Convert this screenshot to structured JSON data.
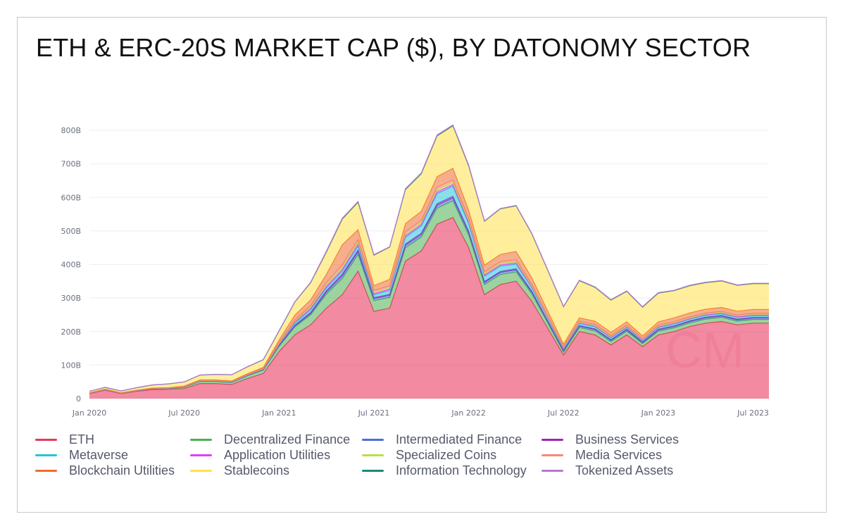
{
  "title": "ETH & ERC-20S MARKET CAP ($), BY DATONOMY SECTOR",
  "watermark": "CM",
  "chart_data": {
    "type": "area",
    "stacked": true,
    "title": "ETH & ERC-20S MARKET CAP ($), BY DATONOMY SECTOR",
    "xlabel": "",
    "ylabel": "",
    "ylim": [
      0,
      800000000000
    ],
    "yticks": [
      0,
      100,
      200,
      300,
      400,
      500,
      600,
      700,
      800
    ],
    "ytick_labels": [
      "0",
      "100B",
      "200B",
      "300B",
      "400B",
      "500B",
      "600B",
      "700B",
      "800B"
    ],
    "x_tick_labels": [
      "Jan 2020",
      "Jul 2020",
      "Jan 2021",
      "Jul 2021",
      "Jan 2022",
      "Jul 2022",
      "Jan 2023",
      "Jul 2023"
    ],
    "x_tick_months": [
      0,
      6,
      12,
      18,
      24,
      30,
      36,
      42
    ],
    "x": [
      0,
      1,
      2,
      3,
      4,
      5,
      6,
      7,
      8,
      9,
      10,
      11,
      12,
      13,
      14,
      15,
      16,
      17,
      18,
      19,
      20,
      21,
      22,
      23,
      24,
      25,
      26,
      27,
      28,
      29,
      30,
      31,
      32,
      33,
      34,
      35,
      36,
      37,
      38,
      39,
      40,
      41,
      42,
      43
    ],
    "x_unit": "months since Jan 2020",
    "series": [
      {
        "name": "ETH",
        "color": "#e8365d",
        "values": [
          15,
          25,
          15,
          22,
          27,
          28,
          30,
          45,
          45,
          42,
          60,
          75,
          140,
          190,
          220,
          270,
          310,
          380,
          260,
          270,
          410,
          440,
          520,
          540,
          450,
          310,
          340,
          350,
          290,
          210,
          130,
          200,
          190,
          160,
          190,
          155,
          190,
          200,
          215,
          225,
          230,
          220,
          225,
          225
        ]
      },
      {
        "name": "Decentralized Finance",
        "color": "#4caf50",
        "values": [
          1,
          1,
          1,
          1,
          2,
          2,
          4,
          6,
          6,
          6,
          8,
          10,
          16,
          24,
          30,
          42,
          48,
          50,
          32,
          32,
          40,
          42,
          48,
          50,
          38,
          30,
          30,
          28,
          22,
          16,
          9,
          12,
          12,
          10,
          11,
          9,
          11,
          11,
          11,
          12,
          12,
          11,
          11,
          11
        ]
      },
      {
        "name": "Intermediated Finance",
        "color": "#4a6fd6",
        "values": [
          0.3,
          0.4,
          0.3,
          0.4,
          0.5,
          0.5,
          0.6,
          0.8,
          0.8,
          0.8,
          1,
          1,
          2,
          3,
          4,
          6,
          8,
          8,
          6,
          6,
          7,
          7,
          8,
          8,
          7,
          6,
          6,
          6,
          5,
          4,
          3,
          4,
          4,
          4,
          4,
          3,
          4,
          4,
          4,
          4,
          4,
          4,
          4,
          4
        ]
      },
      {
        "name": "Business Services",
        "color": "#9c27b0",
        "values": [
          0.2,
          0.3,
          0.2,
          0.3,
          0.3,
          0.3,
          0.4,
          0.5,
          0.5,
          0.5,
          0.6,
          0.7,
          1,
          2,
          3,
          4,
          5,
          5,
          3,
          3,
          4,
          4,
          5,
          5,
          4,
          3,
          3,
          3,
          3,
          2,
          2,
          2,
          2,
          2,
          2,
          2,
          2,
          2,
          2,
          2,
          2,
          2,
          2,
          2
        ]
      },
      {
        "name": "Metaverse",
        "color": "#26c6da",
        "values": [
          0.1,
          0.2,
          0.1,
          0.2,
          0.2,
          0.2,
          0.3,
          0.4,
          0.4,
          0.4,
          0.6,
          0.8,
          2,
          6,
          8,
          8,
          9,
          12,
          8,
          12,
          20,
          22,
          30,
          30,
          22,
          16,
          16,
          14,
          10,
          8,
          5,
          6,
          6,
          5,
          5,
          4,
          5,
          5,
          5,
          5,
          5,
          5,
          5,
          5
        ]
      },
      {
        "name": "Application Utilities",
        "color": "#e040fb",
        "values": [
          0.2,
          0.3,
          0.2,
          0.3,
          0.3,
          0.3,
          0.4,
          0.6,
          0.6,
          0.6,
          0.8,
          1,
          2,
          3,
          4,
          5,
          6,
          6,
          4,
          4,
          5,
          5,
          6,
          6,
          5,
          4,
          4,
          4,
          3,
          2,
          2,
          2,
          2,
          2,
          2,
          2,
          2,
          2,
          2,
          2,
          2,
          2,
          2,
          2
        ]
      },
      {
        "name": "Specialized Coins",
        "color": "#b7e04a",
        "values": [
          0.2,
          0.3,
          0.2,
          0.3,
          0.3,
          0.3,
          0.4,
          0.6,
          0.6,
          0.6,
          0.8,
          1,
          2,
          3,
          4,
          5,
          6,
          6,
          4,
          4,
          5,
          5,
          6,
          6,
          5,
          4,
          4,
          4,
          3,
          2,
          2,
          2,
          2,
          2,
          2,
          2,
          2,
          2,
          2,
          2,
          2,
          2,
          2,
          2
        ]
      },
      {
        "name": "Media Services",
        "color": "#f48a7a",
        "values": [
          0.2,
          0.3,
          0.2,
          0.3,
          0.3,
          0.3,
          0.4,
          0.6,
          0.6,
          0.6,
          0.8,
          1,
          2,
          3,
          4,
          6,
          7,
          7,
          5,
          5,
          6,
          6,
          7,
          7,
          6,
          5,
          5,
          5,
          4,
          3,
          2,
          3,
          3,
          3,
          3,
          2,
          3,
          3,
          3,
          3,
          3,
          3,
          3,
          3
        ]
      },
      {
        "name": "Blockchain Utilities",
        "color": "#ef6c2e",
        "values": [
          0.5,
          0.7,
          0.5,
          0.7,
          0.8,
          0.8,
          1,
          1.5,
          1.5,
          1.5,
          2,
          3,
          8,
          15,
          18,
          25,
          60,
          30,
          15,
          20,
          25,
          28,
          32,
          35,
          25,
          20,
          22,
          25,
          20,
          15,
          8,
          10,
          10,
          10,
          10,
          8,
          10,
          12,
          12,
          12,
          12,
          12,
          12,
          12
        ]
      },
      {
        "name": "Stablecoins",
        "color": "#ffe14d",
        "values": [
          4,
          5,
          5,
          7,
          9,
          11,
          12,
          14,
          16,
          18,
          20,
          22,
          26,
          38,
          50,
          65,
          75,
          80,
          90,
          95,
          100,
          110,
          120,
          125,
          130,
          130,
          135,
          135,
          130,
          120,
          110,
          110,
          100,
          95,
          90,
          85,
          85,
          80,
          80,
          78,
          78,
          76,
          76,
          76
        ]
      },
      {
        "name": "Information Technology",
        "color": "#1a8a7a",
        "values": [
          0.1,
          0.1,
          0.1,
          0.1,
          0.1,
          0.1,
          0.2,
          0.2,
          0.2,
          0.2,
          0.3,
          0.4,
          0.8,
          1,
          1,
          2,
          2,
          2,
          1,
          1,
          2,
          2,
          2,
          2,
          2,
          1,
          1,
          1,
          1,
          1,
          1,
          1,
          1,
          1,
          1,
          1,
          1,
          1,
          1,
          1,
          1,
          1,
          1,
          1
        ]
      },
      {
        "name": "Tokenized Assets",
        "color": "#b678d6",
        "values": [
          0.1,
          0.1,
          0.1,
          0.1,
          0.1,
          0.1,
          0.2,
          0.2,
          0.2,
          0.2,
          0.3,
          0.4,
          0.8,
          1,
          1,
          2,
          2,
          2,
          1,
          1,
          2,
          2,
          2,
          2,
          2,
          1,
          1,
          1,
          1,
          1,
          1,
          1,
          1,
          1,
          1,
          1,
          1,
          1,
          1,
          1,
          1,
          1,
          1,
          1
        ]
      }
    ],
    "y_unit": "billions USD",
    "legend": "bottom",
    "grid": true
  },
  "legend": {
    "columns": [
      [
        "ETH",
        "Metaverse",
        "Blockchain Utilities"
      ],
      [
        "Decentralized Finance",
        "Application Utilities",
        "Stablecoins"
      ],
      [
        "Intermediated Finance",
        "Specialized Coins",
        "Information Technology"
      ],
      [
        "Business Services",
        "Media Services",
        "Tokenized Assets"
      ]
    ],
    "colors": [
      [
        "#e8365d",
        "#26c6da",
        "#ef6c2e"
      ],
      [
        "#4caf50",
        "#e040fb",
        "#ffe14d"
      ],
      [
        "#4a6fd6",
        "#b7e04a",
        "#1a8a7a"
      ],
      [
        "#9c27b0",
        "#f48a7a",
        "#b678d6"
      ]
    ]
  }
}
